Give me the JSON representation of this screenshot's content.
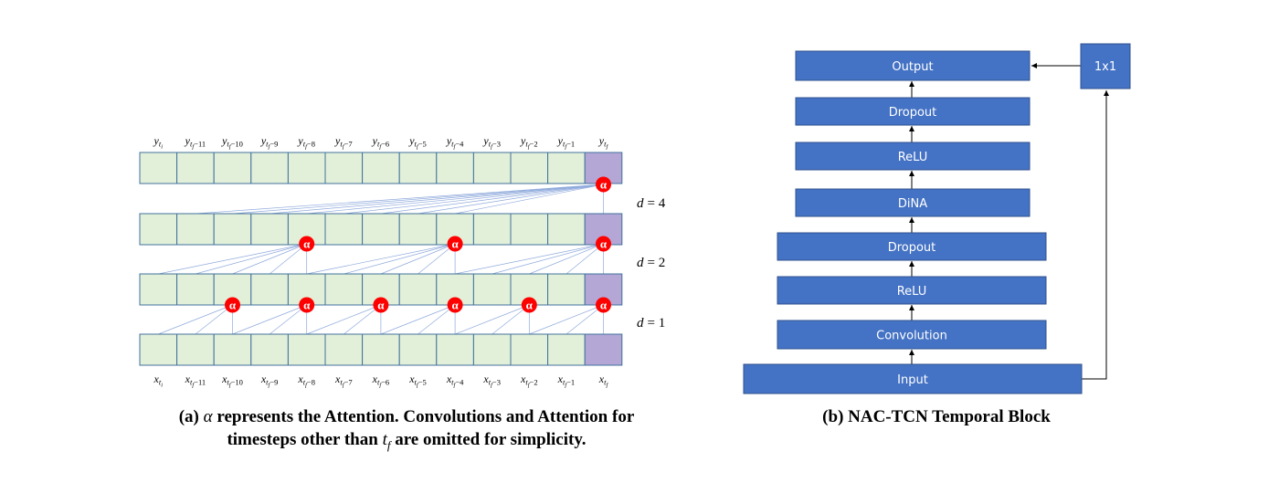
{
  "tcn": {
    "top_labels": [
      {
        "base": "y",
        "sub": "t",
        "subsub": "i"
      },
      {
        "base": "y",
        "sub": "t",
        "subsub": "f",
        "tail": "−11"
      },
      {
        "base": "y",
        "sub": "t",
        "subsub": "f",
        "tail": "−10"
      },
      {
        "base": "y",
        "sub": "t",
        "subsub": "f",
        "tail": "−9"
      },
      {
        "base": "y",
        "sub": "t",
        "subsub": "f",
        "tail": "−8"
      },
      {
        "base": "y",
        "sub": "t",
        "subsub": "f",
        "tail": "−7"
      },
      {
        "base": "y",
        "sub": "t",
        "subsub": "f",
        "tail": "−6"
      },
      {
        "base": "y",
        "sub": "t",
        "subsub": "f",
        "tail": "−5"
      },
      {
        "base": "y",
        "sub": "t",
        "subsub": "f",
        "tail": "−4"
      },
      {
        "base": "y",
        "sub": "t",
        "subsub": "f",
        "tail": "−3"
      },
      {
        "base": "y",
        "sub": "t",
        "subsub": "f",
        "tail": "−2"
      },
      {
        "base": "y",
        "sub": "t",
        "subsub": "f",
        "tail": "−1"
      },
      {
        "base": "y",
        "sub": "t",
        "subsub": "f"
      }
    ],
    "bottom_labels": [
      {
        "base": "x",
        "sub": "t",
        "subsub": "i"
      },
      {
        "base": "x",
        "sub": "t",
        "subsub": "f",
        "tail": "−11"
      },
      {
        "base": "x",
        "sub": "t",
        "subsub": "f",
        "tail": "−10"
      },
      {
        "base": "x",
        "sub": "t",
        "subsub": "f",
        "tail": "−9"
      },
      {
        "base": "x",
        "sub": "t",
        "subsub": "f",
        "tail": "−8"
      },
      {
        "base": "x",
        "sub": "t",
        "subsub": "f",
        "tail": "−7"
      },
      {
        "base": "x",
        "sub": "t",
        "subsub": "f",
        "tail": "−6"
      },
      {
        "base": "x",
        "sub": "t",
        "subsub": "f",
        "tail": "−5"
      },
      {
        "base": "x",
        "sub": "t",
        "subsub": "f",
        "tail": "−4"
      },
      {
        "base": "x",
        "sub": "t",
        "subsub": "f",
        "tail": "−3"
      },
      {
        "base": "x",
        "sub": "t",
        "subsub": "f",
        "tail": "−2"
      },
      {
        "base": "x",
        "sub": "t",
        "subsub": "f",
        "tail": "−1"
      },
      {
        "base": "x",
        "sub": "t",
        "subsub": "f"
      }
    ],
    "dilation_labels": [
      {
        "var": "d",
        "value": "= 4"
      },
      {
        "var": "d",
        "value": "= 2"
      },
      {
        "var": "d",
        "value": "= 1"
      }
    ],
    "attention_symbol": "α",
    "colors": {
      "cell_fill": "#e2f0d9",
      "cell_stroke": "#41719c",
      "target_fill": "#b4a7d6",
      "connection": "#8faadc",
      "attention": "#ff0000"
    }
  },
  "temporal_block": {
    "blocks": [
      "Output",
      "Dropout",
      "ReLU",
      "DiNA",
      "Dropout",
      "ReLU",
      "Convolution",
      "Input"
    ],
    "residual": "1x1",
    "colors": {
      "fill": "#4472c4",
      "stroke": "#2f528f",
      "text": "#ffffff"
    }
  },
  "captions": {
    "a_prefix": "(a)",
    "a_symbol": "α",
    "a_line1": "represents the Attention. Convolutions and Attention for",
    "a_line2_pre": "timesteps other than",
    "a_line2_var": "t",
    "a_line2_sub": "f",
    "a_line2_post": "are omitted for simplicity.",
    "b": "(b) NAC-TCN Temporal Block"
  }
}
